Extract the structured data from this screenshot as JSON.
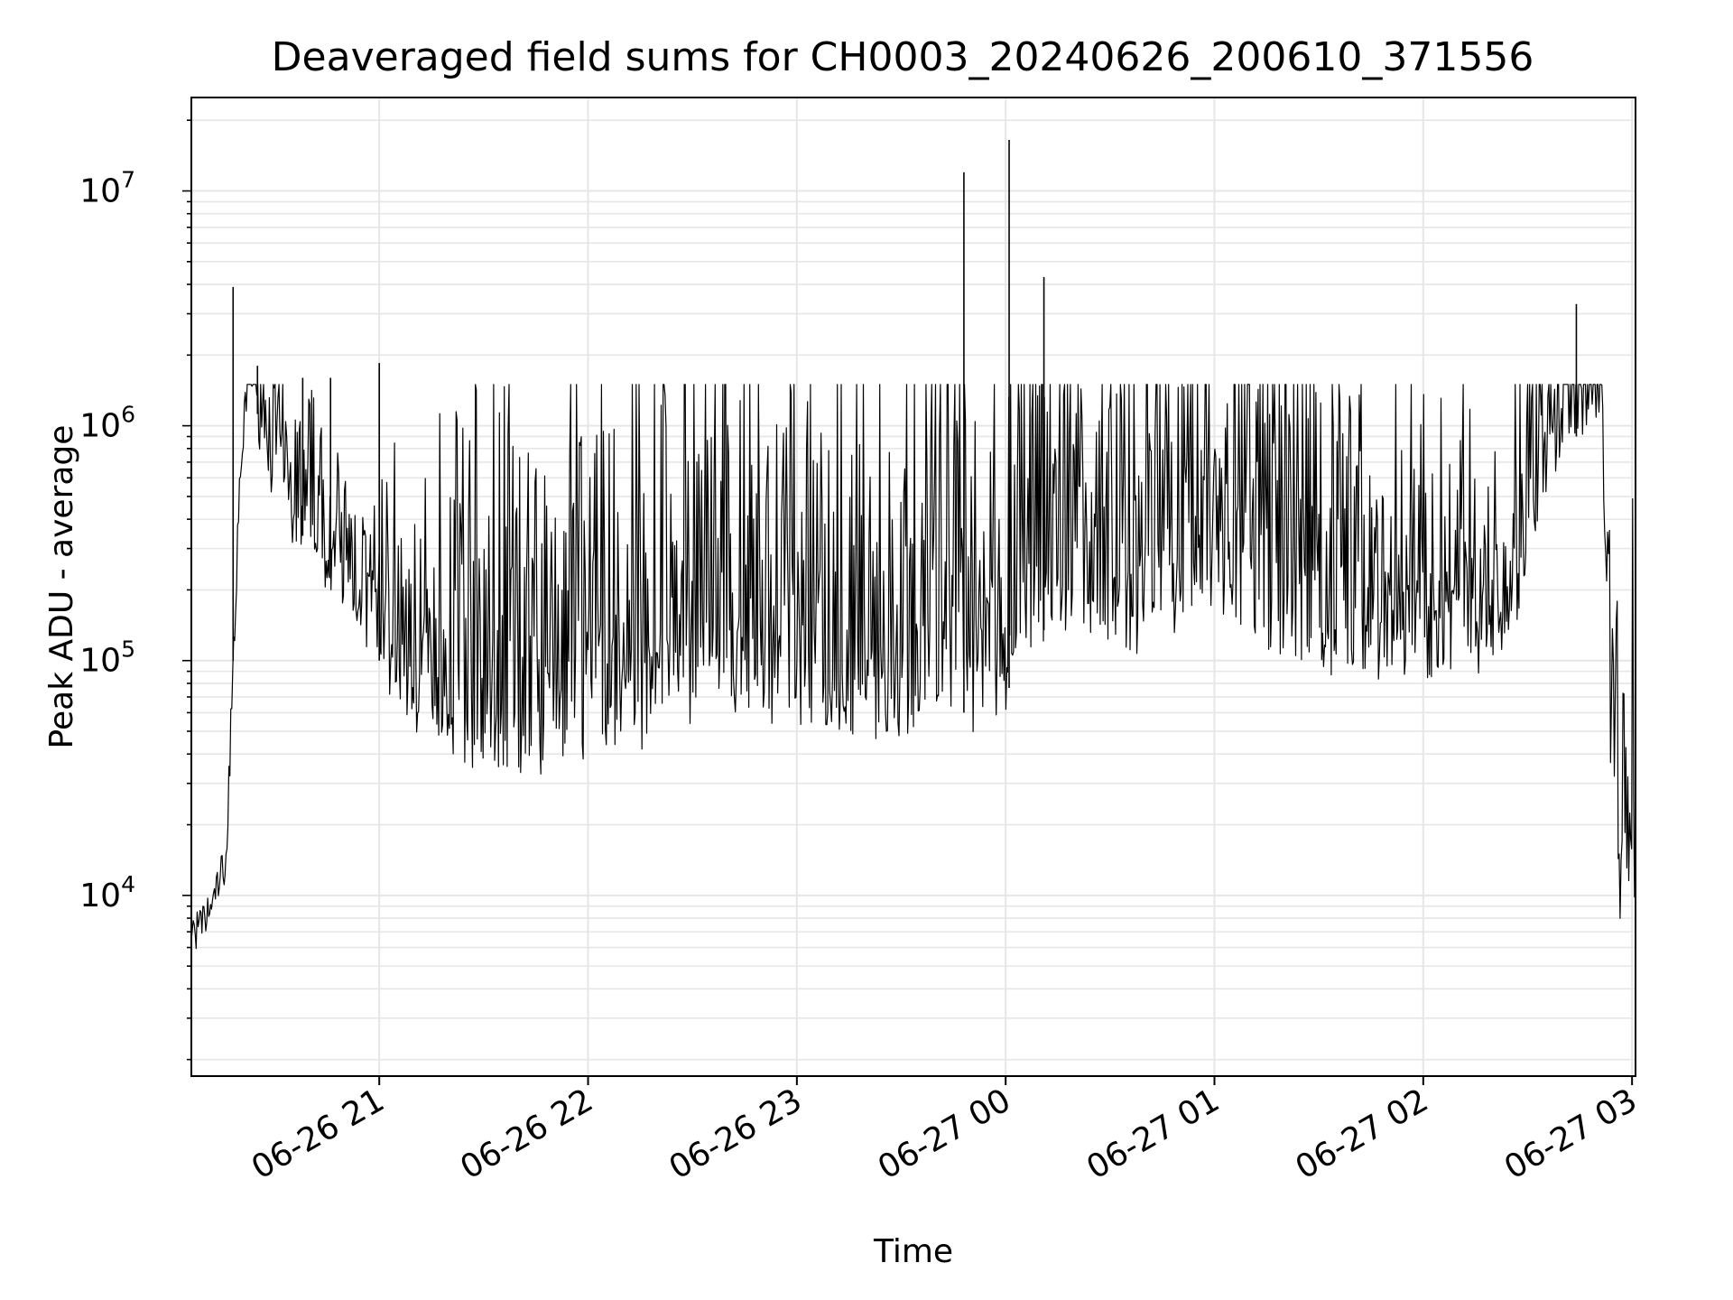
{
  "chart_data": {
    "type": "line",
    "title": "Deaveraged field sums for CH0003_20240626_200610_371556",
    "xlabel": "Time",
    "ylabel": "Peak ADU - average",
    "yscale": "log",
    "ylim": [
      1700,
      25000000
    ],
    "xlim": [
      "06-26 20:06",
      "06-27 03:01"
    ],
    "x_tick_labels": [
      "06-26 21",
      "06-26 22",
      "06-26 23",
      "06-27 00",
      "06-27 01",
      "06-27 02",
      "06-27 03"
    ],
    "x_tick_values": [
      "06-26 21:00",
      "06-26 22:00",
      "06-26 23:00",
      "06-27 00:00",
      "06-27 01:00",
      "06-27 02:00",
      "06-27 03:00"
    ],
    "y_tick_labels": [
      {
        "base": "10",
        "exp": "4"
      },
      {
        "base": "10",
        "exp": "5"
      },
      {
        "base": "10",
        "exp": "6"
      },
      {
        "base": "10",
        "exp": "7"
      }
    ],
    "grid": true,
    "line_color": "#000000",
    "grid_color": "#e6e6e6",
    "series": [
      {
        "x": [
          "06-26 20:06",
          "06-26 20:09",
          "06-26 20:12",
          "06-26 20:14",
          "06-26 20:16",
          "06-26 20:18",
          "06-26 20:20",
          "06-26 20:22",
          "06-26 20:24",
          "06-26 20:26",
          "06-26 20:28",
          "06-26 20:30",
          "06-26 20:32",
          "06-26 20:34",
          "06-26 20:36",
          "06-26 20:40",
          "06-26 20:44",
          "06-26 20:48",
          "06-26 20:52",
          "06-26 20:56",
          "06-26 21:00",
          "06-26 21:04",
          "06-26 21:08",
          "06-26 21:12",
          "06-26 21:16",
          "06-26 21:20",
          "06-26 21:24",
          "06-26 21:28",
          "06-26 21:32",
          "06-26 21:36",
          "06-26 21:40",
          "06-26 21:44",
          "06-26 21:48",
          "06-26 21:52",
          "06-26 21:56",
          "06-26 22:00",
          "06-26 22:04",
          "06-26 22:08",
          "06-26 22:12",
          "06-26 22:16",
          "06-26 22:20",
          "06-26 22:24",
          "06-26 22:28",
          "06-26 22:32",
          "06-26 22:36",
          "06-26 22:40",
          "06-26 22:44",
          "06-26 22:48",
          "06-26 22:52",
          "06-26 22:56",
          "06-26 23:00",
          "06-26 23:04",
          "06-26 23:08",
          "06-26 23:12",
          "06-26 23:16",
          "06-26 23:20",
          "06-26 23:24",
          "06-26 23:28",
          "06-26 23:32",
          "06-26 23:36",
          "06-26 23:40",
          "06-26 23:44",
          "06-26 23:48",
          "06-26 23:52",
          "06-26 23:56",
          "06-27 00:00",
          "06-27 00:04",
          "06-27 00:08",
          "06-27 00:12",
          "06-27 00:16",
          "06-27 00:20",
          "06-27 00:24",
          "06-27 00:28",
          "06-27 00:32",
          "06-27 00:36",
          "06-27 00:40",
          "06-27 00:44",
          "06-27 00:48",
          "06-27 00:52",
          "06-27 00:56",
          "06-27 01:00",
          "06-27 01:04",
          "06-27 01:08",
          "06-27 01:12",
          "06-27 01:16",
          "06-27 01:20",
          "06-27 01:24",
          "06-27 01:28",
          "06-27 01:32",
          "06-27 01:36",
          "06-27 01:40",
          "06-27 01:44",
          "06-27 01:48",
          "06-27 01:52",
          "06-27 01:56",
          "06-27 02:00",
          "06-27 02:04",
          "06-27 02:08",
          "06-27 02:12",
          "06-27 02:16",
          "06-27 02:20",
          "06-27 02:24",
          "06-27 02:28",
          "06-27 02:32",
          "06-27 02:36",
          "06-27 02:40",
          "06-27 02:44",
          "06-27 02:48",
          "06-27 02:50",
          "06-27 02:52",
          "06-27 02:54",
          "06-27 02:56",
          "06-27 02:58",
          "06-27 03:00"
        ],
        "y": [
          7000,
          7500,
          9000,
          12000,
          14000,
          100000,
          600000,
          1500000,
          1400000,
          900000,
          700000,
          600000,
          500000,
          400000,
          350000,
          330000,
          250000,
          200000,
          160000,
          130000,
          100000,
          80000,
          55000,
          60000,
          50000,
          45000,
          45000,
          40000,
          35000,
          35000,
          35000,
          35000,
          38000,
          40000,
          40000,
          45000,
          45000,
          45000,
          50000,
          50000,
          65000,
          70000,
          60000,
          60000,
          60000,
          60000,
          60000,
          60000,
          55000,
          55000,
          55000,
          55000,
          55000,
          50000,
          50000,
          50000,
          50000,
          50000,
          50000,
          55000,
          55000,
          60000,
          60000,
          60000,
          65000,
          70000,
          100000,
          120000,
          140000,
          150000,
          150000,
          140000,
          130000,
          120000,
          120000,
          130000,
          150000,
          160000,
          170000,
          180000,
          190000,
          180000,
          160000,
          140000,
          120000,
          110000,
          100000,
          95000,
          90000,
          90000,
          90000,
          90000,
          90000,
          90000,
          90000,
          90000,
          90000,
          90000,
          95000,
          100000,
          110000,
          130000,
          180000,
          300000,
          500000,
          700000,
          900000,
          1000000,
          950000,
          400000,
          30000,
          8000,
          9000,
          10000
        ]
      }
    ],
    "spikes": [
      {
        "x": "06-26 20:18",
        "y": 3900000
      },
      {
        "x": "06-26 20:25",
        "y": 1800000
      },
      {
        "x": "06-26 20:38",
        "y": 1600000
      },
      {
        "x": "06-26 20:46",
        "y": 1600000
      },
      {
        "x": "06-26 21:00",
        "y": 1850000
      },
      {
        "x": "06-26 23:48",
        "y": 12000000
      },
      {
        "x": "06-27 00:01",
        "y": 16500000
      },
      {
        "x": "06-27 00:11",
        "y": 4300000
      },
      {
        "x": "06-27 02:44",
        "y": 3300000
      }
    ]
  }
}
